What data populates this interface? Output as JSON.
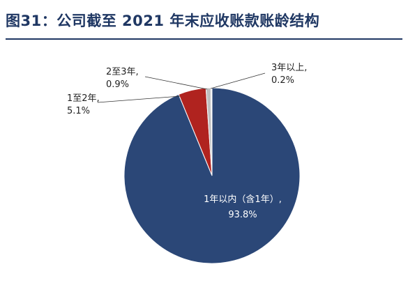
{
  "header": {
    "title": "图31：公司截至 2021 年末应收账款账龄结构"
  },
  "chart_data": {
    "type": "pie",
    "title": "图31：公司截至 2021 年末应收账款账龄结构",
    "slices": [
      {
        "label": "1年以内（含1年）",
        "value": 93.8,
        "value_label": "93.8%",
        "color": "#2b4777"
      },
      {
        "label": "1至2年",
        "value": 5.1,
        "value_label": "5.1%",
        "color": "#b0231f"
      },
      {
        "label": "2至3年",
        "value": 0.9,
        "value_label": "0.9%",
        "color": "#bfbfbf"
      },
      {
        "label": "3年以上",
        "value": 0.2,
        "value_label": "0.2%",
        "color": "#e6e6e6"
      }
    ],
    "legend": "none"
  }
}
